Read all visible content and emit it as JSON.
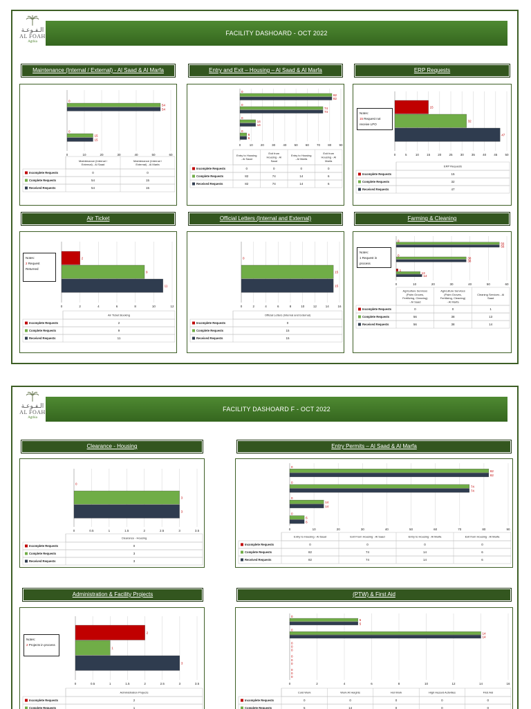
{
  "logo": {
    "arabic": "الـفـوعـة",
    "english": "AL FOAH",
    "sub": "Agthia"
  },
  "pages": [
    {
      "title": "FACILITY  DASHOARD - OCT 2022",
      "panels": [
        {
          "id": "maint",
          "header": "Maintenance (Internal / External) - Al Saad & Al Marfa",
          "chart_data": {
            "type": "bar",
            "categories": [
              "Maintenance (Internal / External) - Al Saad",
              "Maintenance (Internal / External) - Al Marfa"
            ],
            "series": [
              {
                "name": "Incomplete Requests",
                "values": [
                  0,
                  0
                ]
              },
              {
                "name": "Complete Requests",
                "values": [
                  54,
                  15
                ]
              },
              {
                "name": "Received Requests",
                "values": [
                  54,
                  15
                ]
              }
            ],
            "xlim": [
              0,
              60
            ],
            "ticks": [
              0,
              10,
              20,
              30,
              40,
              50,
              60
            ]
          }
        },
        {
          "id": "entry",
          "header": "Entry and Exit – Housing – Al Saad & Al Marfa",
          "chart_data": {
            "type": "bar",
            "categories": [
              "Entry to Housing - Al Saad",
              "Exit from Housing - Al Saad",
              "Entry to Housing - Al Marfa",
              "Exit from Housing - Al Marfa"
            ],
            "series": [
              {
                "name": "Incomplete Requests",
                "values": [
                  0,
                  0,
                  0,
                  0
                ]
              },
              {
                "name": "Complete Requests",
                "values": [
                  82,
                  74,
                  14,
                  6
                ]
              },
              {
                "name": "Received Requests",
                "values": [
                  82,
                  74,
                  14,
                  6
                ]
              }
            ],
            "xlim": [
              0,
              90
            ],
            "ticks": [
              0,
              10,
              20,
              30,
              40,
              50,
              60,
              70,
              80,
              90
            ]
          }
        },
        {
          "id": "erp",
          "header": "ERP Requests",
          "notes": {
            "label": "Notes:",
            "highlight": "15",
            "text": " Request not receive LPO"
          },
          "chart_data": {
            "type": "bar",
            "categories": [
              "ERP Requests"
            ],
            "series": [
              {
                "name": "Incomplete Requests",
                "values": [
                  15
                ]
              },
              {
                "name": "Complete Requests",
                "values": [
                  32
                ]
              },
              {
                "name": "Received Requests",
                "values": [
                  47
                ]
              }
            ],
            "xlim": [
              0,
              50
            ],
            "ticks": [
              0,
              5,
              10,
              15,
              20,
              25,
              30,
              35,
              40,
              45,
              50
            ]
          }
        },
        {
          "id": "air",
          "header": "Air Ticket",
          "notes": {
            "label": "Notes:",
            "highlight": "2",
            "text": " Request Returned"
          },
          "chart_data": {
            "type": "bar",
            "categories": [
              "Air Ticket Booking"
            ],
            "series": [
              {
                "name": "Incomplete Requests",
                "values": [
                  2
                ]
              },
              {
                "name": "Complete Requests",
                "values": [
                  9
                ]
              },
              {
                "name": "Received Requests",
                "values": [
                  11
                ]
              }
            ],
            "xlim": [
              0,
              12
            ],
            "ticks": [
              0,
              2,
              4,
              6,
              8,
              10,
              12
            ]
          }
        },
        {
          "id": "letters",
          "header": "Official Letters (Internal and External)",
          "chart_data": {
            "type": "bar",
            "categories": [
              "Official Letters (Internal and External)"
            ],
            "series": [
              {
                "name": "Incomplete Requests",
                "values": [
                  0
                ]
              },
              {
                "name": "Complete Requests",
                "values": [
                  15
                ]
              },
              {
                "name": "Received Requests",
                "values": [
                  15
                ]
              }
            ],
            "xlim": [
              0,
              16
            ],
            "ticks": [
              0,
              2,
              4,
              6,
              8,
              10,
              12,
              14,
              16
            ]
          }
        },
        {
          "id": "farm",
          "header": "Farming & Cleaning",
          "notes": {
            "label": "Notes:",
            "highlight": "",
            "text": "1 Request in process"
          },
          "chart_data": {
            "type": "bar",
            "categories": [
              "Agriculture Services (Palm Groves, Fertilizing, Cleaning) - Al Saad",
              "Agriculture Services (Palm Groves, Fertilizing, Cleaning) - Al Marfa",
              "Cleaning Services - Al Saad"
            ],
            "series": [
              {
                "name": "Incomplete Requests",
                "values": [
                  0,
                  0,
                  1
                ]
              },
              {
                "name": "Complete Requests",
                "values": [
                  56,
                  38,
                  13
                ]
              },
              {
                "name": "Received Requests",
                "values": [
                  56,
                  38,
                  14
                ]
              }
            ],
            "xlim": [
              0,
              60
            ],
            "ticks": [
              0,
              10,
              20,
              30,
              40,
              50,
              60
            ]
          }
        }
      ]
    },
    {
      "title": "FACILITY  DASHOARD F - OCT 2022",
      "panels": [
        {
          "id": "clearance",
          "header": "Clearance - Housing",
          "chart_data": {
            "type": "bar",
            "categories": [
              "Clearance - Housing"
            ],
            "series": [
              {
                "name": "Incomplete Requests",
                "values": [
                  0
                ]
              },
              {
                "name": "Complete Requests",
                "values": [
                  3
                ]
              },
              {
                "name": "Received Requests",
                "values": [
                  3
                ]
              }
            ],
            "xlim": [
              0,
              3.5
            ],
            "ticks": [
              0,
              0.5,
              1,
              1.5,
              2,
              2.5,
              3,
              3.5
            ]
          }
        },
        {
          "id": "permits",
          "header": "Entry Permits – Al Saad & Al Marfa",
          "chart_data": {
            "type": "bar",
            "categories": [
              "Entry to Housing - Al Saad",
              "Exit From Housing - Al Saad",
              "Entry to Housing - Al Marfa",
              "Exit from Housing - Al Marfa"
            ],
            "series": [
              {
                "name": "Incomplete Requests",
                "values": [
                  0,
                  0,
                  0,
                  0
                ]
              },
              {
                "name": "Complete Requests",
                "values": [
                  82,
                  74,
                  14,
                  6
                ]
              },
              {
                "name": "Received Requests",
                "values": [
                  82,
                  74,
                  14,
                  6
                ]
              }
            ],
            "xlim": [
              0,
              90
            ],
            "ticks": [
              0,
              10,
              20,
              30,
              40,
              50,
              60,
              70,
              80,
              90
            ]
          }
        },
        {
          "id": "admin",
          "header": "Administration & Facility Projects",
          "notes": {
            "label": "Notes:",
            "highlight": "2",
            "text": " Projects in process"
          },
          "chart_data": {
            "type": "bar",
            "categories": [
              "Administration Projects"
            ],
            "series": [
              {
                "name": "Incomplete Requests",
                "values": [
                  2
                ]
              },
              {
                "name": "Complete Requests",
                "values": [
                  1
                ]
              },
              {
                "name": "Received Requests",
                "values": [
                  3
                ]
              }
            ],
            "xlim": [
              0,
              3.5
            ],
            "ticks": [
              0,
              0.5,
              1,
              1.5,
              2,
              2.5,
              3,
              3.5
            ]
          }
        },
        {
          "id": "ptw",
          "header": "(PTW) & First Aid",
          "chart_data": {
            "type": "bar",
            "categories": [
              "Cold Work",
              "Work At Heights",
              "Hot Work",
              "High Hazard Activities",
              "First Aid"
            ],
            "series": [
              {
                "name": "Incomplete Requests",
                "values": [
                  0,
                  0,
                  0,
                  0,
                  0
                ]
              },
              {
                "name": "Complete Requests",
                "values": [
                  5,
                  14,
                  0,
                  0,
                  0
                ]
              },
              {
                "name": "Received Requests",
                "values": [
                  5,
                  14,
                  0,
                  0,
                  0
                ]
              }
            ],
            "xlim": [
              0,
              16
            ],
            "ticks": [
              0,
              2,
              4,
              6,
              8,
              10,
              12,
              14,
              16
            ]
          }
        }
      ]
    }
  ],
  "colors": {
    "incomplete": "#c00000",
    "complete": "#70ad47",
    "received": "#2f3c4f",
    "banner": "#4a7f2e",
    "header": "#33561f"
  }
}
